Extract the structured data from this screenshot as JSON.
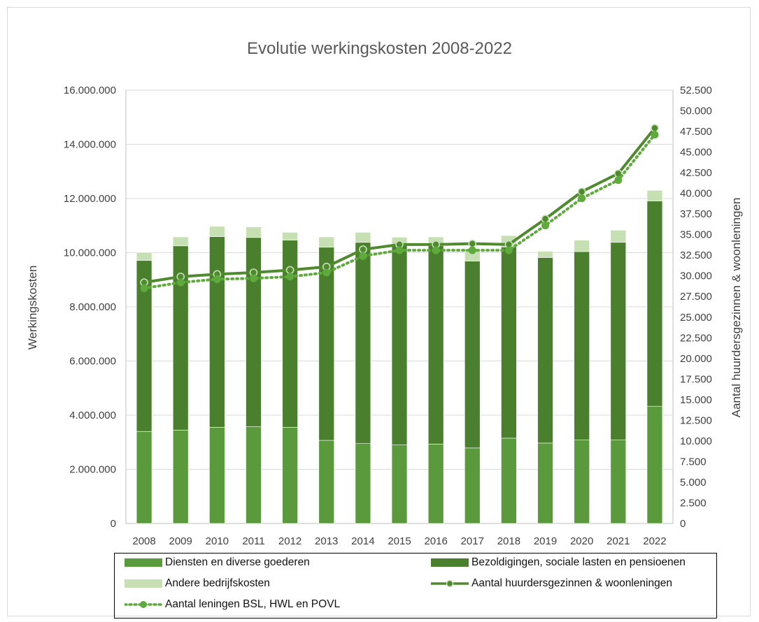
{
  "chart_data": {
    "type": "bar",
    "title": "Evolutie werkingskosten 2008-2022",
    "ylabel": "Werkingskosten",
    "y2label": "Aantal huurdersgezinnen & woonleningen",
    "ylim": [
      0,
      16000000
    ],
    "y2lim": [
      0,
      52500
    ],
    "y_ticks": [
      "0",
      "2.000.000",
      "4.000.000",
      "6.000.000",
      "8.000.000",
      "10.000.000",
      "12.000.000",
      "14.000.000",
      "16.000.000"
    ],
    "y2_ticks": [
      "0",
      "2.500",
      "5.000",
      "7.500",
      "10.000",
      "12.500",
      "15.000",
      "17.500",
      "20.000",
      "22.500",
      "25.000",
      "27.500",
      "30.000",
      "32.500",
      "35.000",
      "37.500",
      "40.000",
      "42.500",
      "45.000",
      "47.500",
      "50.000",
      "52.500"
    ],
    "grid": true,
    "stacked": true,
    "legend_position": "bottom",
    "categories": [
      "2008",
      "2009",
      "2010",
      "2011",
      "2012",
      "2013",
      "2014",
      "2015",
      "2016",
      "2017",
      "2018",
      "2019",
      "2020",
      "2021",
      "2022"
    ],
    "series": [
      {
        "name": "Diensten en diverse goederen",
        "kind": "bar",
        "axis": "left",
        "color": "#5b9a3c",
        "values": [
          3400000,
          3450000,
          3550000,
          3580000,
          3550000,
          3070000,
          2950000,
          2900000,
          2930000,
          2790000,
          3150000,
          2970000,
          3080000,
          3080000,
          4330000
        ]
      },
      {
        "name": "Bezoldigingen, sociale lasten en pensioenen",
        "kind": "bar",
        "axis": "left",
        "color": "#4a7f2e",
        "values": [
          6310000,
          6800000,
          7040000,
          6980000,
          6910000,
          7130000,
          7430000,
          7370000,
          7330000,
          6900000,
          7060000,
          6850000,
          6960000,
          7300000,
          7580000
        ]
      },
      {
        "name": "Andere bedrijfskosten",
        "kind": "bar",
        "axis": "left",
        "color": "#c6e0b4",
        "values": [
          300000,
          330000,
          380000,
          390000,
          290000,
          380000,
          370000,
          300000,
          320000,
          450000,
          420000,
          230000,
          420000,
          450000,
          390000
        ]
      },
      {
        "name": "Aantal huurdersgezinnen & woonleningen",
        "kind": "line",
        "axis": "right",
        "color": "#4f8a2f",
        "values": [
          29200,
          29900,
          30200,
          30400,
          30700,
          31100,
          33200,
          33800,
          33800,
          33900,
          33800,
          36900,
          40200,
          42400,
          47900
        ]
      },
      {
        "name": "Aantal leningen BSL, HWL en POVL",
        "kind": "dotted-line",
        "axis": "right",
        "color": "#5faa3c",
        "values": [
          28500,
          29200,
          29600,
          29700,
          29900,
          30400,
          32400,
          33100,
          33100,
          33100,
          33100,
          36100,
          39400,
          41600,
          47100
        ]
      }
    ]
  }
}
